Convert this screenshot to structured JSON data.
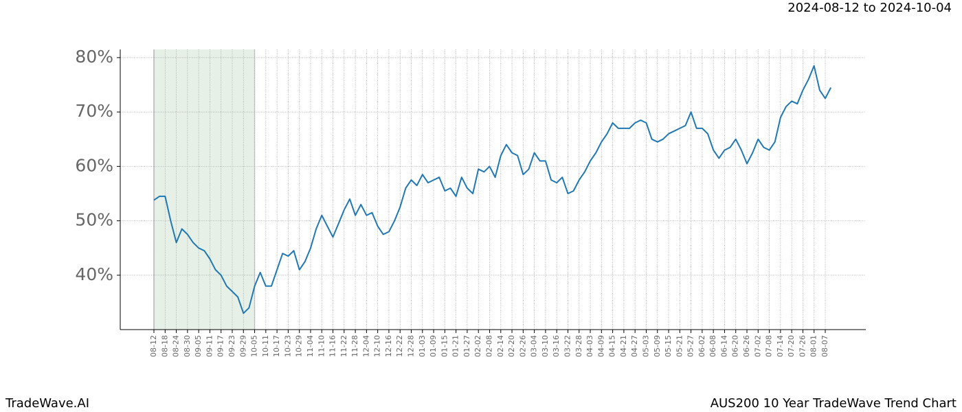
{
  "header": "2024-08-12 to 2024-10-04",
  "footer": {
    "left": "TradeWave.AI",
    "right": "AUS200 10 Year TradeWave Trend Chart"
  },
  "chart_data": {
    "type": "line",
    "categories": [
      "08-12",
      null,
      "08-18",
      null,
      "08-24",
      null,
      "08-30",
      null,
      "09-05",
      null,
      "09-11",
      null,
      "09-17",
      null,
      "09-23",
      null,
      "09-29",
      null,
      "10-05",
      null,
      "10-11",
      null,
      "10-17",
      null,
      "10-23",
      null,
      "10-29",
      null,
      "11-04",
      null,
      "11-10",
      null,
      "11-16",
      null,
      "11-22",
      null,
      "11-28",
      null,
      "12-04",
      null,
      "12-10",
      null,
      "12-16",
      null,
      "12-22",
      null,
      "12-28",
      null,
      "01-03",
      null,
      "01-09",
      null,
      "01-15",
      null,
      "01-21",
      null,
      "01-27",
      null,
      "02-02",
      null,
      "02-08",
      null,
      "02-14",
      null,
      "02-20",
      null,
      "02-26",
      null,
      "03-04",
      null,
      "03-10",
      null,
      "03-16",
      null,
      "03-22",
      null,
      "03-28",
      null,
      "04-03",
      null,
      "04-09",
      null,
      "04-15",
      null,
      "04-21",
      null,
      "04-27",
      null,
      "05-03",
      null,
      "05-09",
      null,
      "05-15",
      null,
      "05-21",
      null,
      "05-27",
      null,
      "06-02",
      null,
      "06-08",
      null,
      "06-14",
      null,
      "06-20",
      null,
      "06-26",
      null,
      "07-02",
      null,
      "07-08",
      null,
      "07-14",
      null,
      "07-20",
      null,
      "07-26",
      null,
      "08-01",
      null,
      "08-07",
      null
    ],
    "series": [
      {
        "color": "#1f77b4",
        "values": [
          53.8,
          54.5,
          54.5,
          50,
          46,
          48.5,
          47.5,
          46,
          45,
          44.5,
          43,
          41,
          40,
          38,
          37,
          36,
          33,
          34,
          38,
          40.5,
          38,
          38,
          41,
          44,
          43.5,
          44.5,
          41,
          42.5,
          45,
          48.5,
          51,
          49,
          47,
          49.5,
          52,
          54,
          51,
          53,
          51,
          51.5,
          49,
          47.5,
          48,
          50,
          52.5,
          56,
          57.5,
          56.5,
          58.5,
          57,
          57.5,
          58,
          55.5,
          56,
          54.5,
          58,
          56,
          55,
          59.5,
          59,
          60,
          58,
          62,
          64,
          62.5,
          62,
          58.5,
          59.5,
          62.5,
          61,
          61,
          57.5,
          57,
          58,
          55,
          55.5,
          57.5,
          59,
          61,
          62.5,
          64.5,
          66,
          68,
          67,
          67,
          67,
          68,
          68.5,
          68,
          65,
          64.5,
          65,
          66,
          66.5,
          67,
          67.5,
          70,
          67,
          67,
          66,
          63,
          61.5,
          63,
          63.5,
          65,
          63,
          60.5,
          62.5,
          65,
          63.5,
          63,
          64.5,
          69,
          71,
          72,
          71.5,
          74,
          76,
          78.5,
          74,
          72.5,
          74.5
        ]
      }
    ],
    "ylim": [
      30,
      81.5
    ],
    "yticks": [
      {
        "value": 40,
        "label": "40%"
      },
      {
        "value": 50,
        "label": "50%"
      },
      {
        "value": 60,
        "label": "60%"
      },
      {
        "value": 70,
        "label": "70%"
      },
      {
        "value": 80,
        "label": "80%"
      }
    ],
    "grid": true,
    "highlight": [
      "08-12",
      "10-05"
    ],
    "highlight_color": "#e6f0e6"
  }
}
